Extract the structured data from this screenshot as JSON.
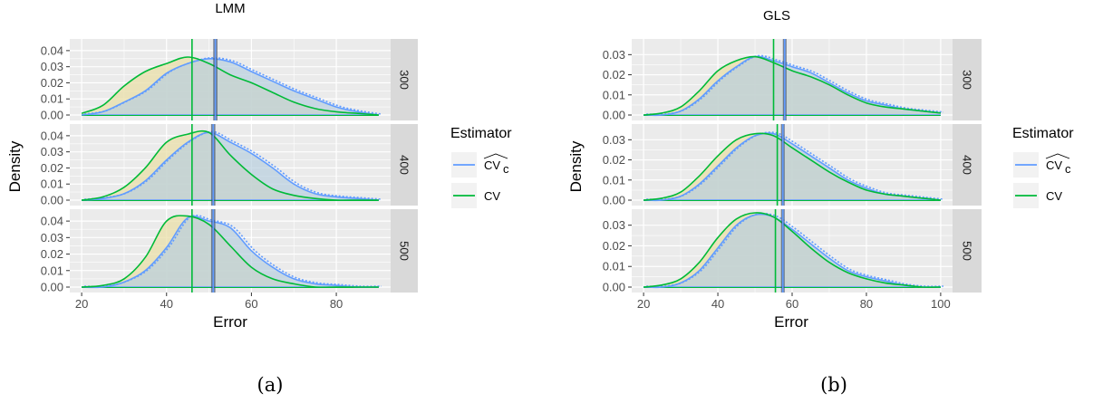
{
  "chart_data": [
    {
      "type": "area",
      "panel": "(a)",
      "title": "LMM",
      "xlabel": "Error",
      "ylabel": "Density",
      "xlim": [
        20,
        90
      ],
      "ylim": [
        0,
        0.045
      ],
      "xticks": [
        20,
        40,
        60,
        80
      ],
      "xtick_labels": [
        "20",
        "40",
        "60",
        "80"
      ],
      "yticks": [
        0,
        0.01,
        0.02,
        0.03,
        0.04
      ],
      "ytick_labels": [
        "0.00",
        "0.01",
        "0.02",
        "0.03",
        "0.04"
      ],
      "grid": true,
      "legend_title": "Estimator",
      "legend_position": "right",
      "facets": [
        {
          "label": "300",
          "vlines": {
            "cv": 46,
            "cvc": 51.5,
            "cvc_band": [
              51,
              52
            ]
          },
          "series": [
            {
              "name": "CV",
              "x": [
                20,
                25,
                30,
                35,
                40,
                45,
                50,
                55,
                60,
                65,
                70,
                75,
                80,
                85,
                90
              ],
              "y": [
                0.001,
                0.006,
                0.018,
                0.027,
                0.032,
                0.036,
                0.032,
                0.025,
                0.02,
                0.014,
                0.008,
                0.004,
                0.002,
                0.001,
                0.0
              ]
            },
            {
              "name": "CV_c",
              "x": [
                20,
                25,
                30,
                35,
                40,
                45,
                50,
                55,
                60,
                65,
                70,
                75,
                80,
                85,
                90
              ],
              "y": [
                0.0,
                0.002,
                0.008,
                0.015,
                0.026,
                0.032,
                0.035,
                0.033,
                0.027,
                0.021,
                0.015,
                0.01,
                0.005,
                0.002,
                0.0
              ]
            }
          ]
        },
        {
          "label": "400",
          "vlines": {
            "cv": 46,
            "cvc": 51,
            "cvc_band": [
              50.5,
              51.5
            ]
          },
          "series": [
            {
              "name": "CV",
              "x": [
                20,
                25,
                30,
                35,
                40,
                45,
                50,
                55,
                60,
                65,
                70,
                75,
                80,
                85,
                90
              ],
              "y": [
                0.0,
                0.002,
                0.008,
                0.02,
                0.036,
                0.041,
                0.042,
                0.028,
                0.016,
                0.007,
                0.003,
                0.001,
                0.0,
                0.0,
                0.0
              ]
            },
            {
              "name": "CV_c",
              "x": [
                20,
                25,
                30,
                35,
                40,
                45,
                50,
                55,
                60,
                65,
                70,
                75,
                80,
                85,
                90
              ],
              "y": [
                0.0,
                0.001,
                0.004,
                0.012,
                0.025,
                0.036,
                0.042,
                0.036,
                0.029,
                0.02,
                0.01,
                0.004,
                0.002,
                0.001,
                0.0
              ]
            }
          ]
        },
        {
          "label": "500",
          "vlines": {
            "cv": 46,
            "cvc": 51,
            "cvc_band": [
              50.5,
              51.5
            ]
          },
          "series": [
            {
              "name": "CV",
              "x": [
                20,
                25,
                30,
                35,
                40,
                45,
                50,
                55,
                60,
                65,
                70,
                75,
                80,
                85,
                90
              ],
              "y": [
                0.0,
                0.001,
                0.005,
                0.018,
                0.04,
                0.043,
                0.038,
                0.025,
                0.012,
                0.005,
                0.002,
                0.0,
                0.0,
                0.0,
                0.0
              ]
            },
            {
              "name": "CV_c",
              "x": [
                20,
                25,
                30,
                35,
                40,
                45,
                50,
                55,
                60,
                65,
                70,
                75,
                80,
                85,
                90
              ],
              "y": [
                0.0,
                0.0,
                0.003,
                0.01,
                0.024,
                0.042,
                0.04,
                0.036,
                0.022,
                0.012,
                0.005,
                0.002,
                0.001,
                0.0,
                0.0
              ]
            }
          ]
        }
      ]
    },
    {
      "type": "area",
      "panel": "(b)",
      "title": "GLS",
      "xlabel": "Error",
      "ylabel": "Density",
      "xlim": [
        20,
        100
      ],
      "ylim": [
        0,
        0.036
      ],
      "xticks": [
        20,
        40,
        60,
        80,
        100
      ],
      "xtick_labels": [
        "20",
        "40",
        "60",
        "80",
        "100"
      ],
      "yticks": [
        0,
        0.01,
        0.02,
        0.03
      ],
      "ytick_labels": [
        "0.00",
        "0.01",
        "0.02",
        "0.03"
      ],
      "grid": true,
      "legend_title": "Estimator",
      "legend_position": "right",
      "facets": [
        {
          "label": "300",
          "vlines": {
            "cv": 55,
            "cvc": 58,
            "cvc_band": [
              57.5,
              58.5
            ]
          },
          "series": [
            {
              "name": "CV",
              "x": [
                20,
                25,
                30,
                35,
                40,
                45,
                50,
                55,
                60,
                65,
                70,
                75,
                80,
                85,
                90,
                95,
                100
              ],
              "y": [
                0.0,
                0.001,
                0.004,
                0.012,
                0.022,
                0.027,
                0.029,
                0.026,
                0.022,
                0.019,
                0.015,
                0.01,
                0.006,
                0.004,
                0.003,
                0.002,
                0.001
              ]
            },
            {
              "name": "CV_c",
              "x": [
                20,
                25,
                30,
                35,
                40,
                45,
                50,
                55,
                60,
                65,
                70,
                75,
                80,
                85,
                90,
                95,
                100
              ],
              "y": [
                0.0,
                0.0,
                0.002,
                0.008,
                0.017,
                0.024,
                0.029,
                0.027,
                0.024,
                0.021,
                0.016,
                0.011,
                0.007,
                0.005,
                0.003,
                0.002,
                0.001
              ]
            }
          ]
        },
        {
          "label": "400",
          "vlines": {
            "cv": 56,
            "cvc": 57.5,
            "cvc_band": [
              57,
              58
            ]
          },
          "series": [
            {
              "name": "CV",
              "x": [
                20,
                25,
                30,
                35,
                40,
                45,
                50,
                55,
                60,
                65,
                70,
                75,
                80,
                85,
                90,
                95,
                100
              ],
              "y": [
                0.0,
                0.001,
                0.004,
                0.012,
                0.022,
                0.03,
                0.033,
                0.032,
                0.026,
                0.02,
                0.014,
                0.009,
                0.005,
                0.003,
                0.002,
                0.001,
                0.0
              ]
            },
            {
              "name": "CV_c",
              "x": [
                20,
                25,
                30,
                35,
                40,
                45,
                50,
                55,
                60,
                65,
                70,
                75,
                80,
                85,
                90,
                95,
                100
              ],
              "y": [
                0.0,
                0.0,
                0.002,
                0.008,
                0.017,
                0.026,
                0.032,
                0.033,
                0.028,
                0.022,
                0.016,
                0.01,
                0.006,
                0.003,
                0.002,
                0.001,
                0.0
              ]
            }
          ]
        },
        {
          "label": "500",
          "vlines": {
            "cv": 55.5,
            "cvc": 57.5,
            "cvc_band": [
              57,
              58
            ]
          },
          "series": [
            {
              "name": "CV",
              "x": [
                20,
                25,
                30,
                35,
                40,
                45,
                50,
                55,
                60,
                65,
                70,
                75,
                80,
                85,
                90,
                95,
                100
              ],
              "y": [
                0.0,
                0.001,
                0.004,
                0.012,
                0.024,
                0.033,
                0.036,
                0.034,
                0.027,
                0.019,
                0.012,
                0.007,
                0.004,
                0.002,
                0.001,
                0.0,
                0.0
              ]
            },
            {
              "name": "CV_c",
              "x": [
                20,
                25,
                30,
                35,
                40,
                45,
                50,
                55,
                60,
                65,
                70,
                75,
                80,
                85,
                90,
                95,
                100
              ],
              "y": [
                0.0,
                0.0,
                0.002,
                0.008,
                0.019,
                0.03,
                0.035,
                0.034,
                0.028,
                0.021,
                0.014,
                0.008,
                0.005,
                0.003,
                0.001,
                0.0,
                0.0
              ]
            }
          ]
        }
      ]
    }
  ],
  "legend_items": [
    {
      "key": "cvc",
      "label_main": "CV",
      "label_sub": "c",
      "hat": true,
      "color": "#619CFF"
    },
    {
      "key": "cv",
      "label_main": "CV",
      "label_sub": "",
      "hat": false,
      "color": "#00BA38"
    }
  ],
  "colors": {
    "cv": "#00BA38",
    "cvc": "#619CFF",
    "cv_fill": "#e9dfa8",
    "cvc_fill": "#b8cfde",
    "overlap_fill": "#c8cfc4",
    "panel_bg": "#ebebeb",
    "strip_bg": "#d9d9d9",
    "grid": "#ffffff",
    "band": "#3a4a66"
  },
  "captions": [
    "(a)",
    "(b)"
  ]
}
